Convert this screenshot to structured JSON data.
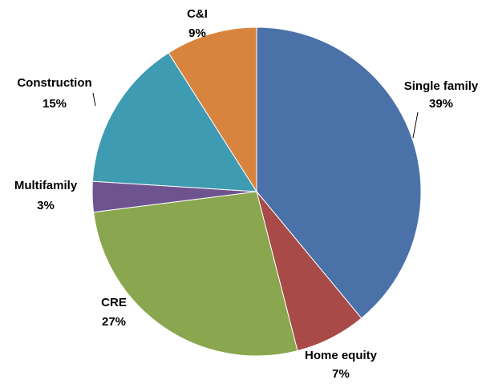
{
  "chart_data": {
    "type": "pie",
    "categories": [
      "Single family",
      "Home equity",
      "CRE",
      "Multifamily",
      "Construction",
      "C&I"
    ],
    "values": [
      39,
      7,
      27,
      3,
      15,
      9
    ],
    "value_labels": [
      "39%",
      "7%",
      "27%",
      "3%",
      "15%",
      "9%"
    ],
    "colors": [
      "#4a72a8",
      "#a84a47",
      "#8aa64f",
      "#6e548f",
      "#3f9bb1",
      "#d9843e"
    ]
  }
}
